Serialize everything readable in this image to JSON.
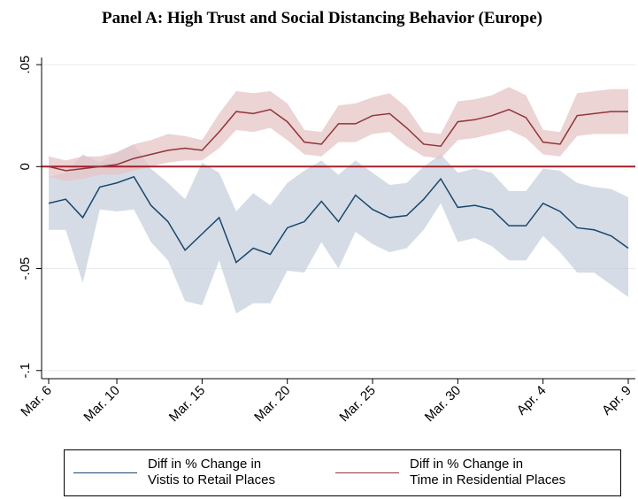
{
  "chart_data": {
    "type": "line",
    "title": "Panel A: High Trust and Social Distancing Behavior (Europe)",
    "categories": [
      "Mar. 6",
      null,
      null,
      null,
      "Mar. 10",
      null,
      null,
      null,
      null,
      "Mar. 15",
      null,
      null,
      null,
      null,
      "Mar. 20",
      null,
      null,
      null,
      null,
      "Mar. 25",
      null,
      null,
      null,
      null,
      "Mar. 30",
      null,
      null,
      null,
      null,
      "Apr. 4",
      null,
      null,
      null,
      null,
      "Apr. 9"
    ],
    "ylim": [
      -0.104,
      0.0535
    ],
    "yticks": [
      {
        "value": 0.05,
        "label": ".05"
      },
      0,
      {
        "value": -0.05,
        "label": "-.05"
      },
      {
        "value": -0.1,
        "label": "-.1"
      }
    ],
    "grid": true,
    "reference_line": {
      "value": 0,
      "color": "#a3202a"
    },
    "series": [
      {
        "name": "Diff  in % Change in\nVistis to Retail Places",
        "color": "#1a476f",
        "band_color": "#c7d0dc",
        "values": [
          -0.018,
          -0.016,
          -0.025,
          -0.01,
          -0.008,
          -0.005,
          -0.019,
          -0.027,
          -0.041,
          -0.033,
          -0.025,
          -0.047,
          -0.04,
          -0.043,
          -0.03,
          -0.027,
          -0.017,
          -0.027,
          -0.014,
          -0.021,
          -0.025,
          -0.024,
          -0.016,
          -0.006,
          -0.02,
          -0.019,
          -0.021,
          -0.029,
          -0.029,
          -0.018,
          -0.022,
          -0.03,
          -0.031,
          -0.034,
          -0.04
        ],
        "upper": [
          -0.005,
          -0.003,
          0.006,
          0.002,
          0.007,
          0.011,
          -0.001,
          -0.008,
          -0.016,
          0.002,
          -0.003,
          -0.022,
          -0.013,
          -0.019,
          -0.008,
          -0.002,
          0.003,
          -0.004,
          0.003,
          -0.003,
          -0.009,
          -0.008,
          0.0,
          0.006,
          -0.003,
          -0.001,
          -0.003,
          -0.012,
          -0.012,
          -0.001,
          -0.002,
          -0.008,
          -0.01,
          -0.011,
          -0.015
        ],
        "lower": [
          -0.031,
          -0.031,
          -0.057,
          -0.021,
          -0.022,
          -0.021,
          -0.037,
          -0.046,
          -0.066,
          -0.068,
          -0.046,
          -0.072,
          -0.067,
          -0.067,
          -0.051,
          -0.052,
          -0.037,
          -0.05,
          -0.032,
          -0.038,
          -0.042,
          -0.04,
          -0.031,
          -0.018,
          -0.037,
          -0.035,
          -0.039,
          -0.046,
          -0.046,
          -0.034,
          -0.042,
          -0.052,
          -0.052,
          -0.058,
          -0.064
        ]
      },
      {
        "name": "Diff in % Change in\nTime in Residential Places",
        "color": "#90353b",
        "band_color": "#e6c4c5",
        "values": [
          0.0,
          -0.002,
          -0.001,
          0.0,
          0.001,
          0.004,
          0.006,
          0.008,
          0.009,
          0.008,
          0.017,
          0.027,
          0.026,
          0.028,
          0.022,
          0.012,
          0.011,
          0.021,
          0.021,
          0.025,
          0.026,
          0.019,
          0.011,
          0.01,
          0.022,
          0.023,
          0.025,
          0.028,
          0.024,
          0.012,
          0.011,
          0.025,
          0.026,
          0.027,
          0.027
        ],
        "upper": [
          0.005,
          0.003,
          0.005,
          0.005,
          0.007,
          0.011,
          0.013,
          0.016,
          0.015,
          0.013,
          0.026,
          0.037,
          0.036,
          0.037,
          0.031,
          0.018,
          0.017,
          0.03,
          0.031,
          0.034,
          0.036,
          0.029,
          0.017,
          0.016,
          0.032,
          0.033,
          0.035,
          0.039,
          0.035,
          0.018,
          0.017,
          0.036,
          0.037,
          0.038,
          0.038
        ],
        "lower": [
          -0.005,
          -0.007,
          -0.006,
          -0.004,
          -0.004,
          -0.002,
          0.0,
          0.002,
          0.003,
          0.003,
          0.009,
          0.018,
          0.017,
          0.019,
          0.013,
          0.006,
          0.005,
          0.012,
          0.012,
          0.016,
          0.017,
          0.01,
          0.005,
          0.004,
          0.013,
          0.014,
          0.016,
          0.018,
          0.014,
          0.006,
          0.005,
          0.015,
          0.016,
          0.016,
          0.016
        ]
      }
    ]
  }
}
